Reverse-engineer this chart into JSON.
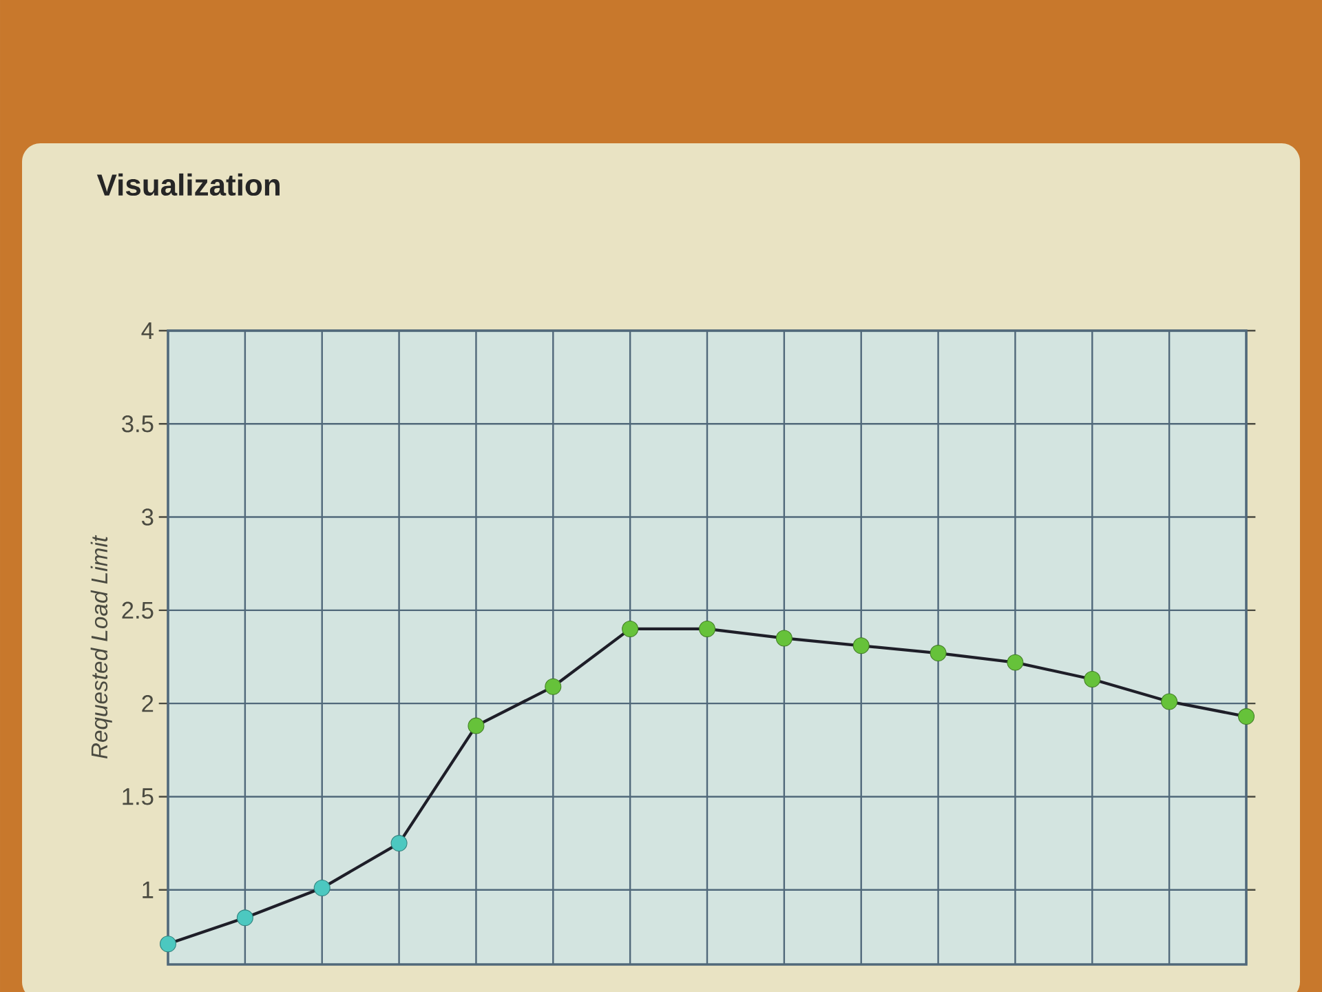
{
  "chart_data": {
    "type": "line",
    "title": "Visualization",
    "ylabel": "Requested Load Limit",
    "categories": [
      null,
      null,
      null,
      null,
      null,
      null,
      null,
      null,
      null,
      null,
      null,
      null,
      null,
      null,
      null
    ],
    "values": [
      0.71,
      0.85,
      1.01,
      1.25,
      1.88,
      2.09,
      2.4,
      2.4,
      2.35,
      2.31,
      2.27,
      2.22,
      2.13,
      2.01,
      1.93
    ],
    "color": "#1e1e28",
    "colors": [
      "#4cc8c0",
      "#4cc8c0",
      "#4cc8c0",
      "#4cc8c0",
      "#66c23a",
      "#66c23a",
      "#66c23a",
      "#66c23a",
      "#66c23a",
      "#66c23a",
      "#66c23a",
      "#66c23a",
      "#66c23a",
      "#66c23a",
      "#66c23a"
    ],
    "ylim": [
      0.6,
      4
    ],
    "yticks": [
      1,
      1.5,
      2,
      2.5,
      3,
      3.5,
      4
    ],
    "grid": true,
    "marker": "circle",
    "line_style": "solid",
    "tick_labels": "y"
  }
}
